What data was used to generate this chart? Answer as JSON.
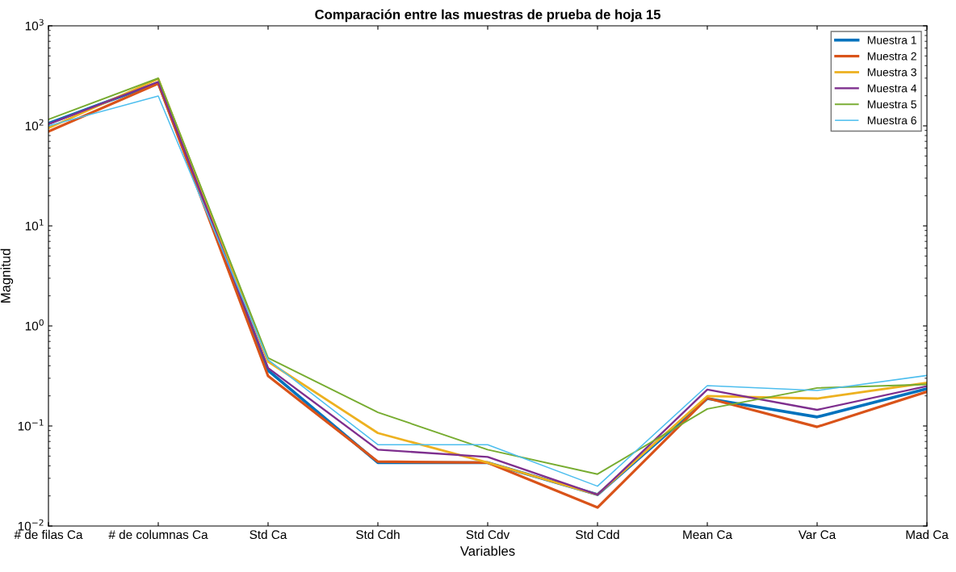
{
  "chart_data": {
    "type": "line",
    "title": "Comparación entre las muestras de prueba de hoja 15",
    "xlabel": "Variables",
    "ylabel": "Magnitud",
    "categories": [
      "# de filas Ca",
      "# de columnas Ca",
      "Std Ca",
      "Std Cdh",
      "Std Cdv",
      "Std Cdd",
      "Mean Ca",
      "Var Ca",
      "Mad Ca"
    ],
    "series": [
      {
        "name": "Muestra 1",
        "color": "#0072bd",
        "values": [
          106,
          270,
          0.36,
          0.043,
          0.043,
          0.0206,
          0.188,
          0.123,
          0.235
        ]
      },
      {
        "name": "Muestra 2",
        "color": "#d95319",
        "values": [
          88,
          265,
          0.316,
          0.044,
          0.043,
          0.0153,
          0.19,
          0.098,
          0.22
        ]
      },
      {
        "name": "Muestra 3",
        "color": "#edb120",
        "values": [
          95,
          295,
          0.44,
          0.085,
          0.043,
          0.0206,
          0.199,
          0.188,
          0.27
        ]
      },
      {
        "name": "Muestra 4",
        "color": "#7e2f8e",
        "values": [
          104,
          275,
          0.38,
          0.058,
          0.049,
          0.0206,
          0.231,
          0.145,
          0.25
        ]
      },
      {
        "name": "Muestra 5",
        "color": "#77ac30",
        "values": [
          116,
          299,
          0.48,
          0.137,
          0.058,
          0.033,
          0.148,
          0.24,
          0.26
        ]
      },
      {
        "name": "Muestra 6",
        "color": "#4dbeee",
        "values": [
          100,
          199,
          0.46,
          0.065,
          0.065,
          0.025,
          0.253,
          0.226,
          0.32
        ]
      }
    ],
    "log": "y",
    "ylim": [
      0.01,
      1000
    ],
    "yticks": [
      {
        "value": 0.01,
        "label": "10$^{−2}$"
      },
      {
        "value": 0.1,
        "label": "10$^{−1}$"
      },
      {
        "value": 1,
        "label": "10$^{0}$"
      },
      {
        "value": 10,
        "label": "10$^{1}$"
      },
      {
        "value": 100,
        "label": "10$^{2}$"
      },
      {
        "value": 1000,
        "label": "10$^{3}$"
      }
    ],
    "legend": "top right",
    "grid": false,
    "marker": "none",
    "line_style": "solid"
  }
}
